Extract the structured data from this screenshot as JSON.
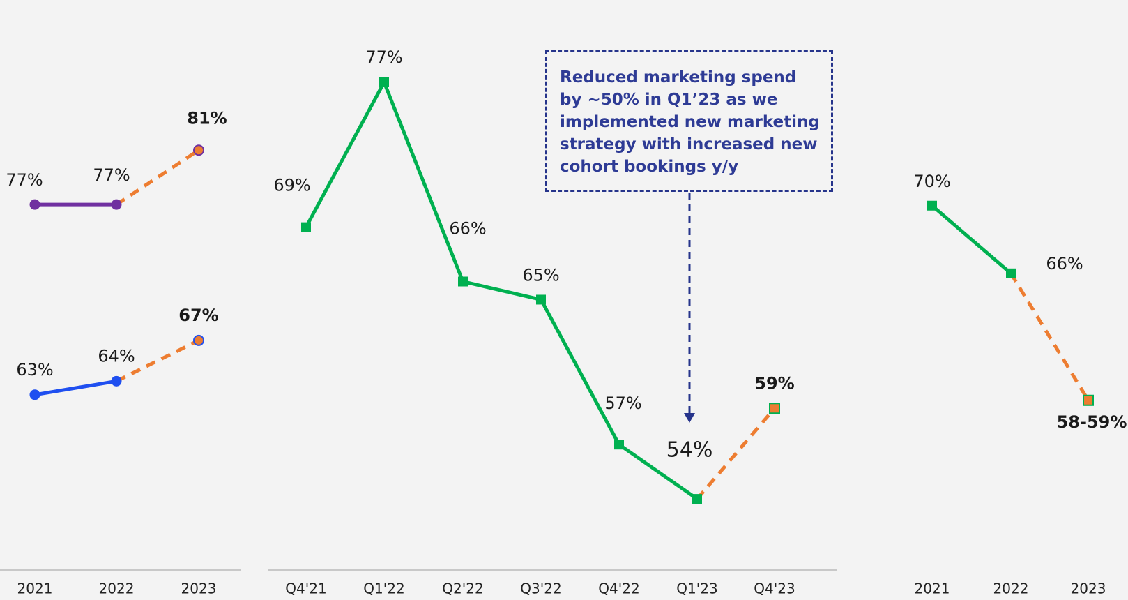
{
  "chart_data": [
    {
      "type": "line",
      "categories": [
        "2021",
        "2022",
        "2023"
      ],
      "ylim": [
        52,
        90
      ],
      "marker": "circle",
      "projection_color": "#ed7d31",
      "series": [
        {
          "color": "#7030a0",
          "values": [
            77,
            77,
            81
          ],
          "value_labels": [
            "77%",
            "77%",
            "81%"
          ],
          "projected_from": 1
        },
        {
          "color": "#1f4ff0",
          "values": [
            63,
            64,
            67
          ],
          "value_labels": [
            "63%",
            "64%",
            "67%"
          ],
          "projected_from": 1
        }
      ]
    },
    {
      "type": "line",
      "categories": [
        "Q4'21",
        "Q1'22",
        "Q2'22",
        "Q3'22",
        "Q4'22",
        "Q1'23",
        "Q4'23"
      ],
      "ylim": [
        51.5,
        80
      ],
      "marker": "square",
      "projection_color": "#ed7d31",
      "annotation": "Reduced marketing spend by ~50% in Q1’23 as we implemented new marketing strategy with increased new cohort bookings y/y",
      "series": [
        {
          "color": "#00b050",
          "values": [
            69,
            77,
            66,
            65,
            57,
            54,
            59
          ],
          "value_labels": [
            "69%",
            "77%",
            "66%",
            "65%",
            "57%",
            "54%",
            "59%"
          ],
          "projected_from": 5
        }
      ]
    },
    {
      "type": "line",
      "categories": [
        "2021",
        "2022",
        "2023"
      ],
      "ylim": [
        50,
        80.5
      ],
      "marker": "square",
      "projection_color": "#ed7d31",
      "series": [
        {
          "color": "#00b050",
          "values": [
            70,
            66,
            58.5
          ],
          "value_labels": [
            "70%",
            "66%",
            "58-59%"
          ],
          "projected_from": 1
        }
      ]
    }
  ]
}
